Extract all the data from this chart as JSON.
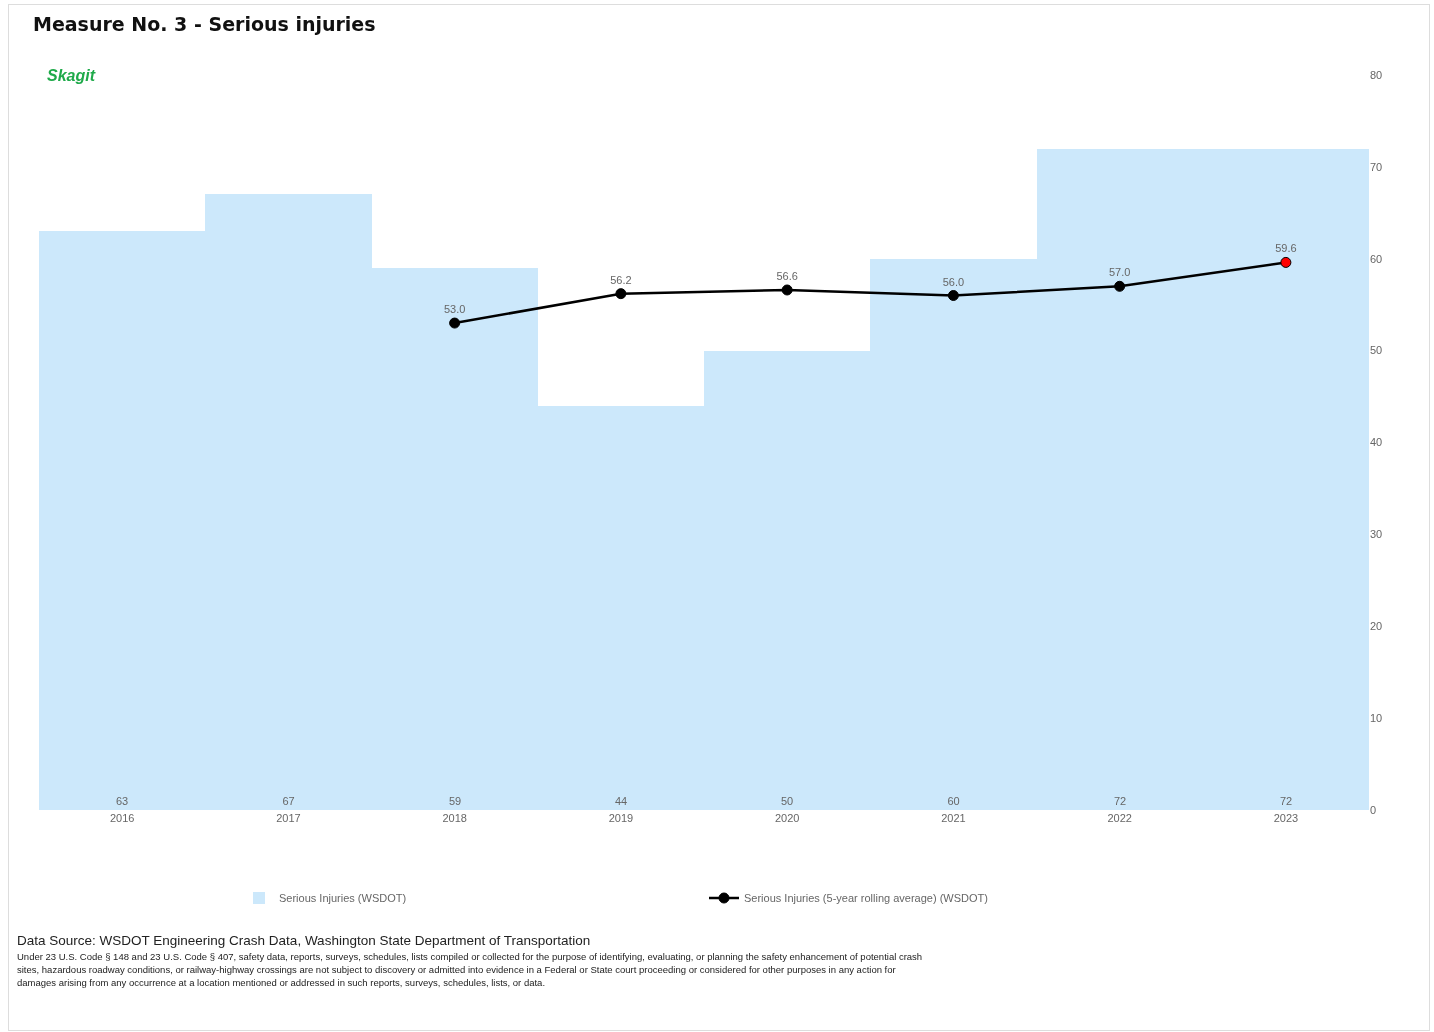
{
  "chart_data": {
    "type": "bar",
    "title": "Measure No. 3 - Serious injuries",
    "subtitle": "Skagit",
    "categories": [
      "2016",
      "2017",
      "2018",
      "2019",
      "2020",
      "2021",
      "2022",
      "2023"
    ],
    "series": [
      {
        "name": "Serious Injuries (WSDOT)",
        "color": "#cce8fb",
        "values": [
          63,
          67,
          59,
          44,
          50,
          60,
          72,
          72
        ],
        "value_labels": [
          "63",
          "67",
          "59",
          "44",
          "50",
          "60",
          "72",
          "72"
        ]
      },
      {
        "name": "Serious Injuries (5-year rolling average) (WSDOT)",
        "type": "line",
        "color": "#000000",
        "colors": [
          "#000000",
          "#000000",
          "#000000",
          "#000000",
          "#000000",
          "#000000",
          "#000000",
          "#ff0000"
        ],
        "values": [
          null,
          null,
          53.0,
          56.2,
          56.6,
          56.0,
          57.0,
          59.6
        ],
        "value_labels": [
          null,
          null,
          "53.0",
          "56.2",
          "56.6",
          "56.0",
          "57.0",
          "59.6"
        ]
      }
    ],
    "ylim": [
      0,
      80
    ],
    "yticks": [
      0,
      10,
      20,
      30,
      40,
      50,
      60,
      70,
      80
    ],
    "grid": false,
    "legend": "bottom",
    "marker": "circle",
    "line_style": "solid",
    "annotations": [
      "Data Source: WSDOT Engineering Crash Data, Washington State Department of Transportation",
      "Under 23 U.S. Code § 148 and 23 U.S. Code § 407, safety data, reports, surveys, schedules, lists compiled or collected for the purpose of identifying, evaluating, or planning the safety enhancement of potential crash sites, hazardous roadway conditions, or railway-highway crossings are not subject  to discovery or admitted into evidence in a Federal or State court proceeding or considered for other purposes in any action for damages arising from any occurrence at a location mentioned or addressed in such reports, surveys, schedules, lists, or data."
    ]
  }
}
